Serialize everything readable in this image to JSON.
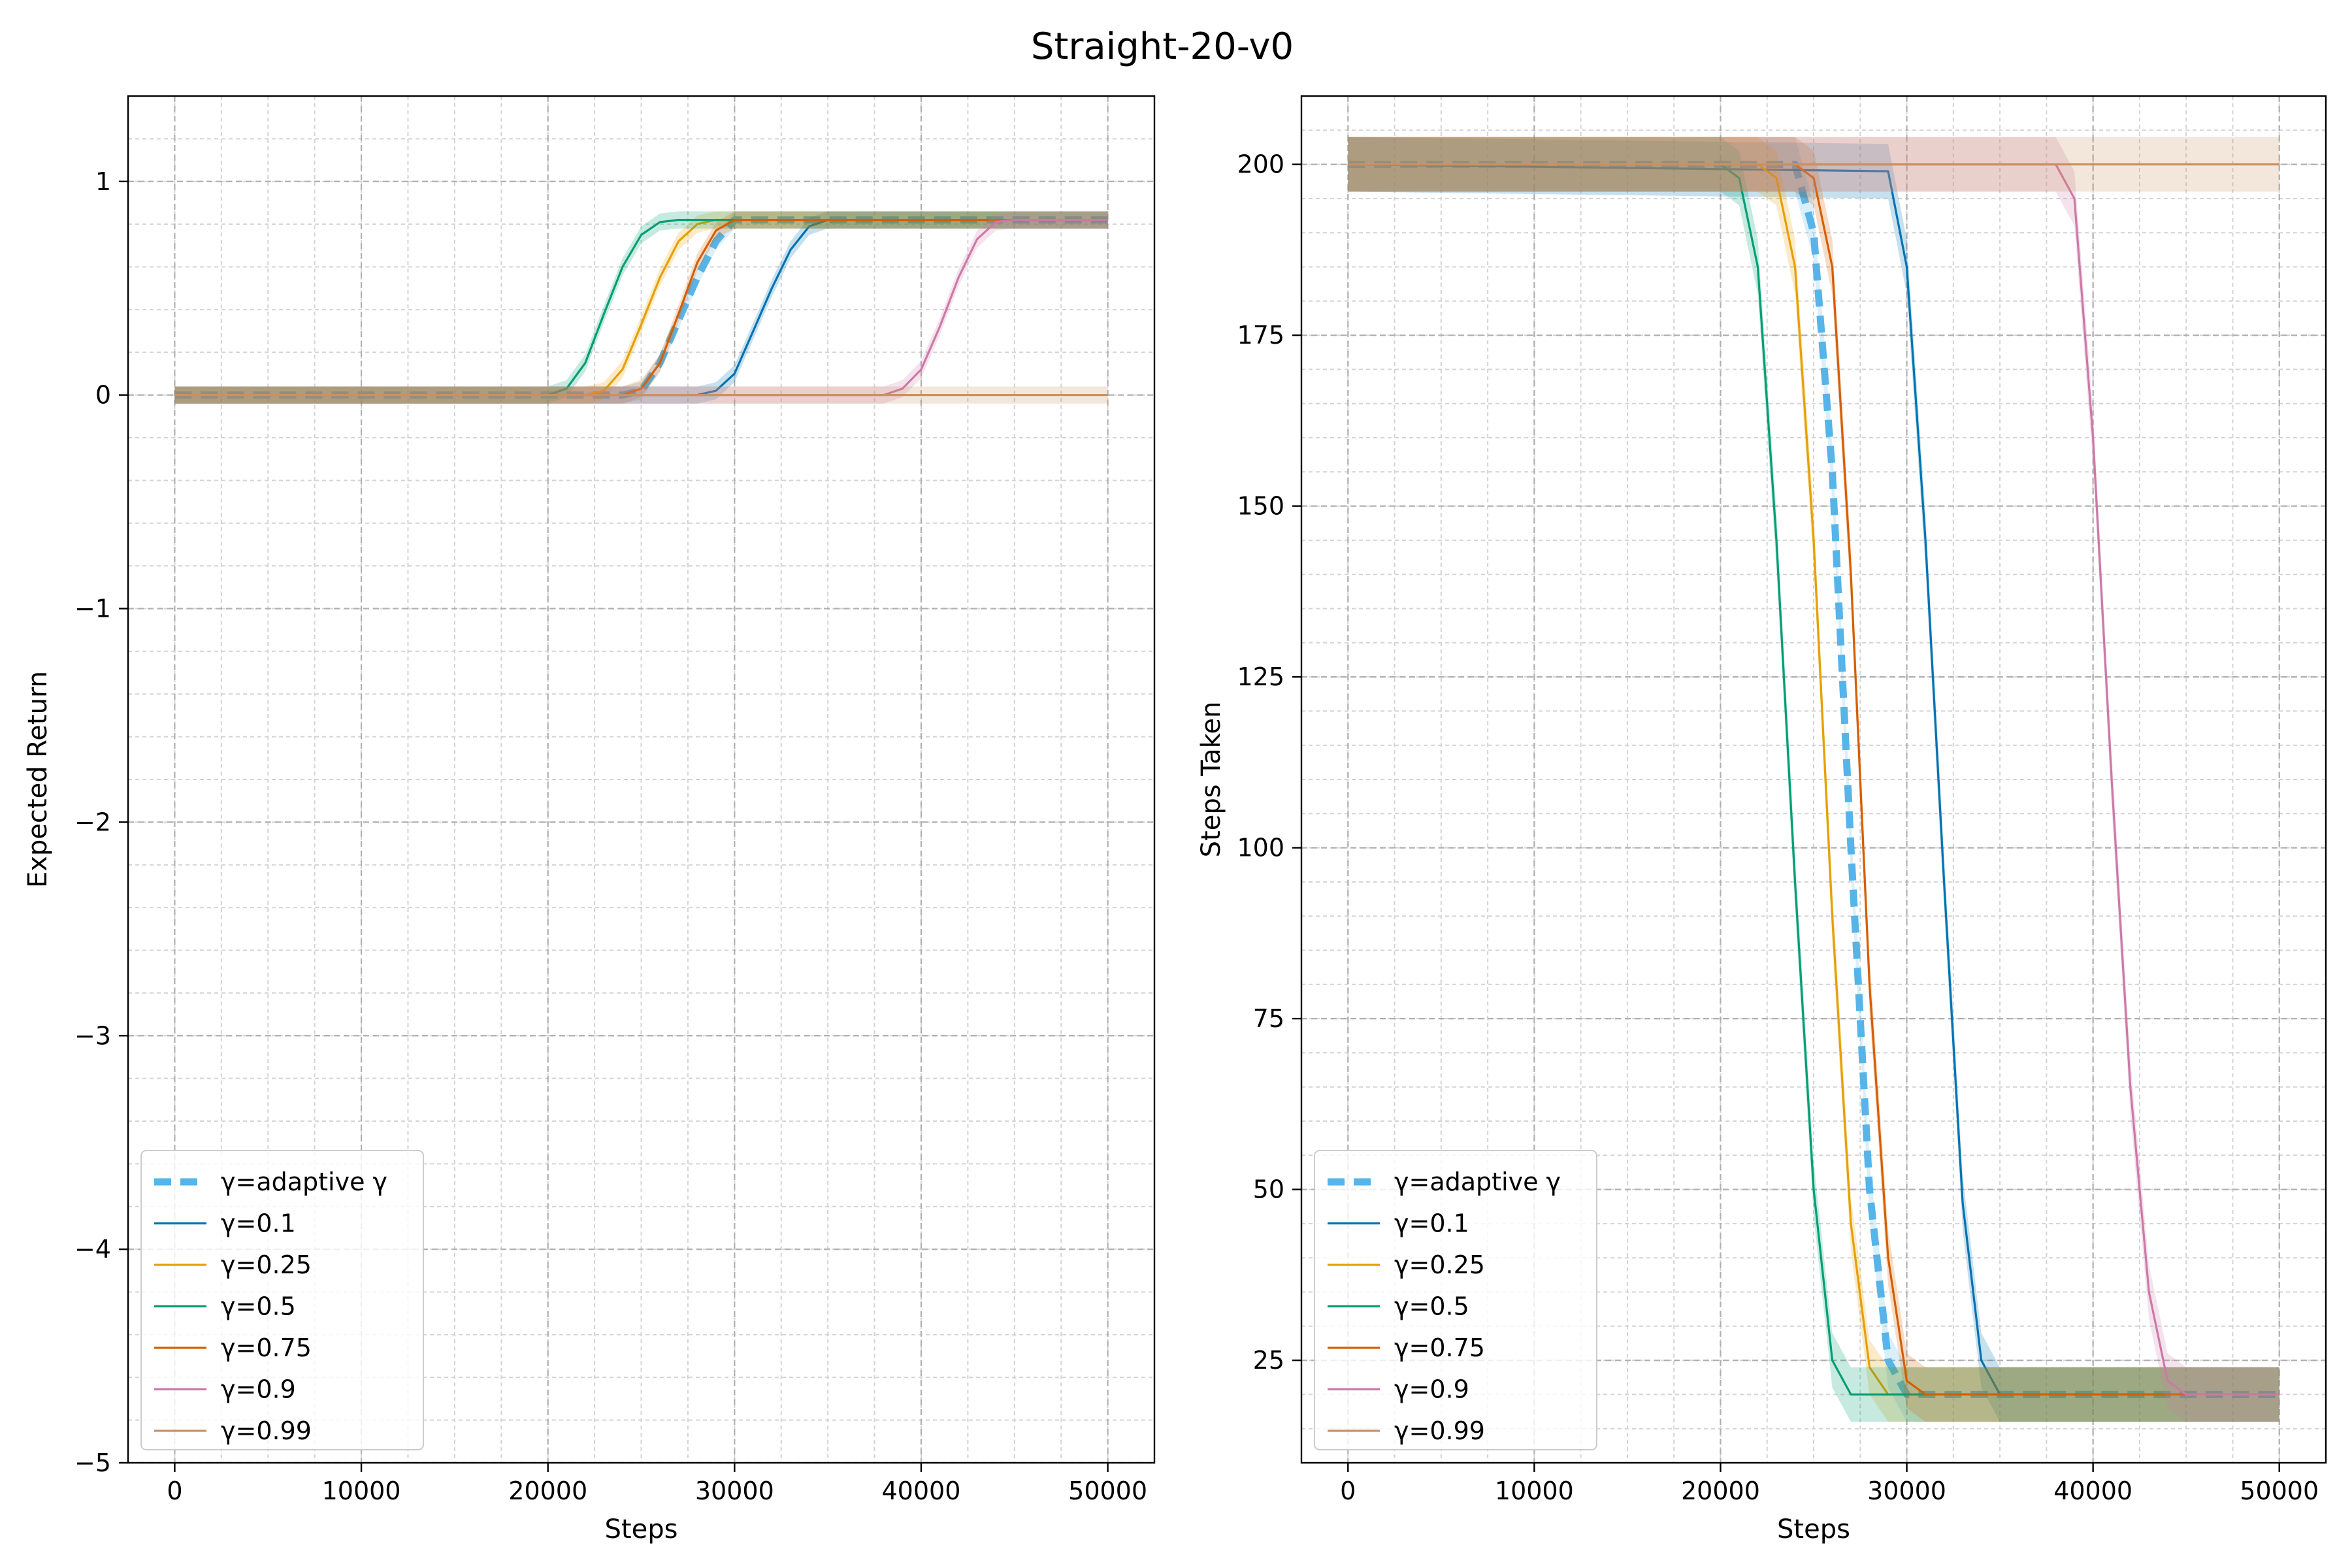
{
  "figure": {
    "suptitle": "Straight-20-v0"
  },
  "chart_data": [
    {
      "type": "line",
      "xlabel": "Steps",
      "ylabel": "Expected Return",
      "xlim": [
        -2500,
        52500
      ],
      "ylim": [
        -5,
        1.4
      ],
      "xticks": [
        0,
        10000,
        20000,
        30000,
        40000,
        50000
      ],
      "xtick_labels": [
        "0",
        "10000",
        "20000",
        "30000",
        "40000",
        "50000"
      ],
      "yticks": [
        1,
        0,
        -1,
        -2,
        -3,
        -4,
        -5
      ],
      "ytick_labels": [
        "1",
        "0",
        "−1",
        "−2",
        "−3",
        "−4",
        "−5"
      ],
      "grid": true,
      "legend": "lower-left",
      "series": [
        {
          "name": "γ=adaptive γ",
          "color": "#56b4e9",
          "style": "dashed",
          "x": [
            0,
            24000,
            25000,
            26000,
            27000,
            28000,
            29000,
            30000,
            50000
          ],
          "y": [
            0,
            0,
            0.02,
            0.15,
            0.35,
            0.55,
            0.72,
            0.82,
            0.82
          ]
        },
        {
          "name": "γ=0.1",
          "color": "#0072b2",
          "style": "solid",
          "x": [
            0,
            28000,
            29000,
            30000,
            31000,
            32000,
            33000,
            34000,
            35000,
            50000
          ],
          "y": [
            0,
            0,
            0.02,
            0.1,
            0.3,
            0.5,
            0.68,
            0.79,
            0.82,
            0.82
          ]
        },
        {
          "name": "γ=0.25",
          "color": "#e69f00",
          "style": "solid",
          "x": [
            0,
            22000,
            23000,
            24000,
            25000,
            26000,
            27000,
            28000,
            29000,
            50000
          ],
          "y": [
            0,
            0,
            0.02,
            0.12,
            0.33,
            0.55,
            0.72,
            0.8,
            0.82,
            0.82
          ]
        },
        {
          "name": "γ=0.5",
          "color": "#009e73",
          "style": "solid",
          "x": [
            0,
            20000,
            21000,
            22000,
            23000,
            24000,
            25000,
            26000,
            27000,
            50000
          ],
          "y": [
            0,
            0,
            0.03,
            0.15,
            0.38,
            0.6,
            0.75,
            0.81,
            0.82,
            0.82
          ]
        },
        {
          "name": "γ=0.75",
          "color": "#d55e00",
          "style": "solid",
          "x": [
            0,
            24000,
            25000,
            26000,
            27000,
            28000,
            29000,
            30000,
            50000
          ],
          "y": [
            0,
            0,
            0.03,
            0.15,
            0.38,
            0.62,
            0.77,
            0.82,
            0.82
          ]
        },
        {
          "name": "γ=0.9",
          "color": "#cc79a7",
          "style": "solid",
          "x": [
            0,
            38000,
            39000,
            40000,
            41000,
            42000,
            43000,
            44000,
            45000,
            50000
          ],
          "y": [
            0,
            0,
            0.03,
            0.12,
            0.32,
            0.55,
            0.73,
            0.81,
            0.82,
            0.82
          ]
        },
        {
          "name": "γ=0.99",
          "color": "#ca9161",
          "style": "solid",
          "x": [
            0,
            50000
          ],
          "y": [
            0,
            0
          ]
        }
      ]
    },
    {
      "type": "line",
      "xlabel": "Steps",
      "ylabel": "Steps Taken",
      "xlim": [
        -2500,
        52500
      ],
      "ylim": [
        10,
        210
      ],
      "xticks": [
        0,
        10000,
        20000,
        30000,
        40000,
        50000
      ],
      "xtick_labels": [
        "0",
        "10000",
        "20000",
        "30000",
        "40000",
        "50000"
      ],
      "yticks": [
        200,
        175,
        150,
        125,
        100,
        75,
        50,
        25
      ],
      "ytick_labels": [
        "200",
        "175",
        "150",
        "125",
        "100",
        "75",
        "50",
        "25"
      ],
      "grid": true,
      "legend": "lower-left",
      "series": [
        {
          "name": "γ=adaptive γ",
          "color": "#56b4e9",
          "style": "dashed",
          "x": [
            0,
            24000,
            25000,
            26000,
            27000,
            28000,
            29000,
            30000,
            50000
          ],
          "y": [
            200,
            200,
            190,
            155,
            100,
            50,
            25,
            20,
            20
          ]
        },
        {
          "name": "γ=0.1",
          "color": "#0072b2",
          "style": "solid",
          "x": [
            0,
            29000,
            30000,
            31000,
            32000,
            33000,
            34000,
            35000,
            50000
          ],
          "y": [
            200,
            199,
            185,
            145,
            95,
            48,
            25,
            20,
            20
          ]
        },
        {
          "name": "γ=0.25",
          "color": "#e69f00",
          "style": "solid",
          "x": [
            0,
            22000,
            23000,
            24000,
            25000,
            26000,
            27000,
            28000,
            29000,
            50000
          ],
          "y": [
            200,
            200,
            198,
            185,
            145,
            90,
            45,
            24,
            20,
            20
          ]
        },
        {
          "name": "γ=0.5",
          "color": "#009e73",
          "style": "solid",
          "x": [
            0,
            20000,
            21000,
            22000,
            23000,
            24000,
            25000,
            26000,
            27000,
            50000
          ],
          "y": [
            200,
            200,
            198,
            185,
            145,
            95,
            50,
            25,
            20,
            20
          ]
        },
        {
          "name": "γ=0.75",
          "color": "#d55e00",
          "style": "solid",
          "x": [
            0,
            24000,
            25000,
            26000,
            27000,
            28000,
            29000,
            30000,
            31000,
            50000
          ],
          "y": [
            200,
            200,
            198,
            185,
            140,
            80,
            40,
            22,
            20,
            20
          ]
        },
        {
          "name": "γ=0.9",
          "color": "#cc79a7",
          "style": "solid",
          "x": [
            0,
            38000,
            39000,
            40000,
            41000,
            42000,
            43000,
            44000,
            45000,
            50000
          ],
          "y": [
            200,
            200,
            195,
            160,
            110,
            65,
            35,
            22,
            20,
            20
          ]
        },
        {
          "name": "γ=0.99",
          "color": "#ca9161",
          "style": "solid",
          "x": [
            0,
            50000
          ],
          "y": [
            200,
            200
          ]
        }
      ]
    }
  ]
}
